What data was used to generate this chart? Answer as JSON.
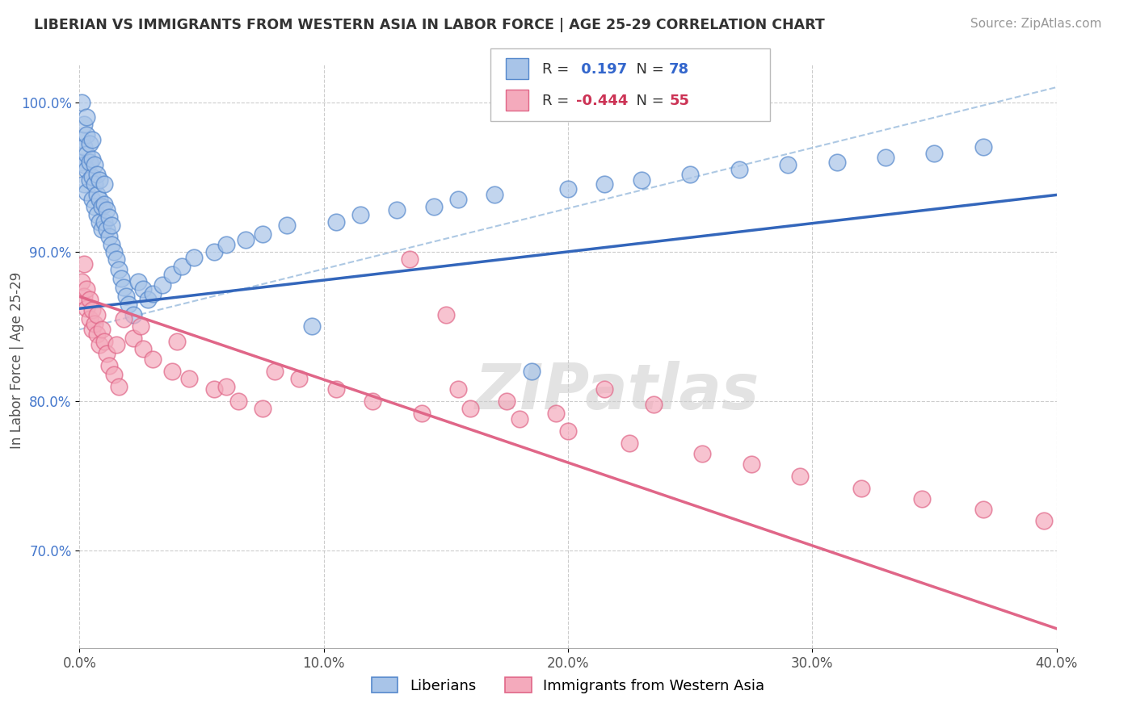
{
  "title": "LIBERIAN VS IMMIGRANTS FROM WESTERN ASIA IN LABOR FORCE | AGE 25-29 CORRELATION CHART",
  "source": "Source: ZipAtlas.com",
  "ylabel_label": "In Labor Force | Age 25-29",
  "legend_label1": "Liberians",
  "legend_label2": "Immigrants from Western Asia",
  "r1": 0.197,
  "n1": 78,
  "r2": -0.444,
  "n2": 55,
  "blue_fill": "#A8C4E8",
  "blue_edge": "#5588CC",
  "pink_fill": "#F4AABC",
  "pink_edge": "#E06688",
  "blue_line": "#3366BB",
  "pink_line": "#E06688",
  "dash_line": "#99BBDD",
  "watermark": "ZIPatlas",
  "xlim": [
    0.0,
    0.4
  ],
  "ylim": [
    0.635,
    1.025
  ],
  "yticks": [
    0.7,
    0.8,
    0.9,
    1.0
  ],
  "xticks": [
    0.0,
    0.1,
    0.2,
    0.3,
    0.4
  ],
  "blue_line_x0": 0.0,
  "blue_line_x1": 0.4,
  "blue_line_y0": 0.862,
  "blue_line_y1": 0.938,
  "pink_line_x0": 0.0,
  "pink_line_x1": 0.4,
  "pink_line_y0": 0.87,
  "pink_line_y1": 0.648,
  "dash_line_x0": 0.0,
  "dash_line_x1": 0.4,
  "dash_line_y0": 0.848,
  "dash_line_y1": 1.01,
  "blue_dots_x": [
    0.001,
    0.001,
    0.001,
    0.002,
    0.002,
    0.002,
    0.002,
    0.003,
    0.003,
    0.003,
    0.003,
    0.003,
    0.004,
    0.004,
    0.004,
    0.005,
    0.005,
    0.005,
    0.005,
    0.006,
    0.006,
    0.006,
    0.007,
    0.007,
    0.007,
    0.008,
    0.008,
    0.008,
    0.009,
    0.009,
    0.01,
    0.01,
    0.01,
    0.011,
    0.011,
    0.012,
    0.012,
    0.013,
    0.013,
    0.014,
    0.015,
    0.016,
    0.017,
    0.018,
    0.019,
    0.02,
    0.022,
    0.024,
    0.026,
    0.028,
    0.03,
    0.034,
    0.038,
    0.042,
    0.047,
    0.055,
    0.06,
    0.068,
    0.075,
    0.085,
    0.095,
    0.105,
    0.115,
    0.13,
    0.145,
    0.155,
    0.17,
    0.185,
    0.2,
    0.215,
    0.23,
    0.25,
    0.27,
    0.29,
    0.31,
    0.33,
    0.35,
    0.37
  ],
  "blue_dots_y": [
    0.96,
    0.975,
    1.0,
    0.945,
    0.958,
    0.97,
    0.985,
    0.94,
    0.955,
    0.965,
    0.978,
    0.99,
    0.948,
    0.96,
    0.972,
    0.935,
    0.95,
    0.962,
    0.975,
    0.93,
    0.945,
    0.958,
    0.925,
    0.938,
    0.952,
    0.92,
    0.935,
    0.948,
    0.915,
    0.93,
    0.92,
    0.932,
    0.945,
    0.915,
    0.928,
    0.91,
    0.923,
    0.905,
    0.918,
    0.9,
    0.895,
    0.888,
    0.882,
    0.876,
    0.87,
    0.865,
    0.858,
    0.88,
    0.875,
    0.868,
    0.872,
    0.878,
    0.885,
    0.89,
    0.896,
    0.9,
    0.905,
    0.908,
    0.912,
    0.918,
    0.85,
    0.92,
    0.925,
    0.928,
    0.93,
    0.935,
    0.938,
    0.82,
    0.942,
    0.945,
    0.948,
    0.952,
    0.955,
    0.958,
    0.96,
    0.963,
    0.966,
    0.97
  ],
  "pink_dots_x": [
    0.001,
    0.002,
    0.002,
    0.003,
    0.003,
    0.004,
    0.004,
    0.005,
    0.005,
    0.006,
    0.007,
    0.007,
    0.008,
    0.009,
    0.01,
    0.011,
    0.012,
    0.014,
    0.016,
    0.018,
    0.022,
    0.026,
    0.03,
    0.038,
    0.045,
    0.055,
    0.065,
    0.075,
    0.09,
    0.105,
    0.12,
    0.14,
    0.155,
    0.175,
    0.195,
    0.215,
    0.235,
    0.255,
    0.275,
    0.295,
    0.32,
    0.345,
    0.37,
    0.395,
    0.16,
    0.18,
    0.2,
    0.225,
    0.135,
    0.15,
    0.08,
    0.06,
    0.04,
    0.025,
    0.015
  ],
  "pink_dots_y": [
    0.88,
    0.87,
    0.892,
    0.862,
    0.875,
    0.855,
    0.868,
    0.848,
    0.861,
    0.852,
    0.845,
    0.858,
    0.838,
    0.848,
    0.84,
    0.832,
    0.824,
    0.818,
    0.81,
    0.855,
    0.842,
    0.835,
    0.828,
    0.82,
    0.815,
    0.808,
    0.8,
    0.795,
    0.815,
    0.808,
    0.8,
    0.792,
    0.808,
    0.8,
    0.792,
    0.808,
    0.798,
    0.765,
    0.758,
    0.75,
    0.742,
    0.735,
    0.728,
    0.72,
    0.795,
    0.788,
    0.78,
    0.772,
    0.895,
    0.858,
    0.82,
    0.81,
    0.84,
    0.85,
    0.838
  ]
}
